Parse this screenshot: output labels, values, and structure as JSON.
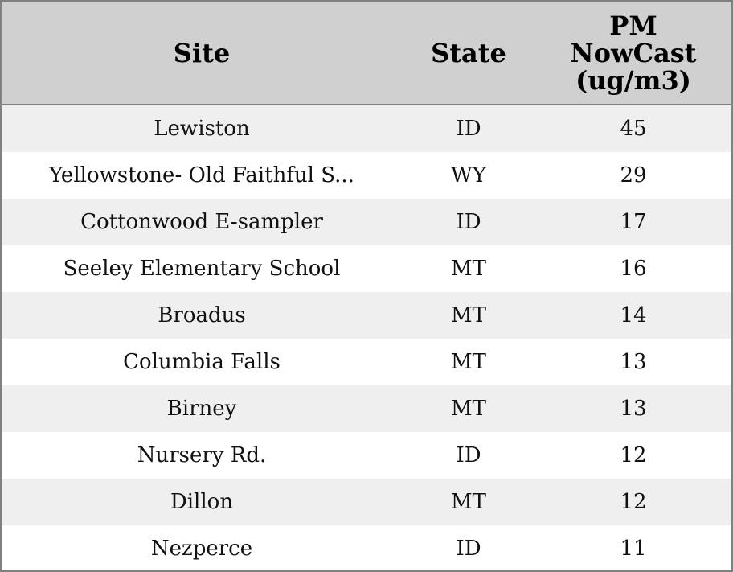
{
  "table": {
    "header": [
      "Site",
      "State",
      "PM NowCast (ug/m3)"
    ],
    "rows": [
      [
        "Lewiston",
        "ID",
        45
      ],
      [
        "Yellowstone- Old Faithful S...",
        "WY",
        29
      ],
      [
        "Cottonwood E-sampler",
        "ID",
        17
      ],
      [
        "Seeley Elementary School",
        "MT",
        16
      ],
      [
        "Broadus",
        "MT",
        14
      ],
      [
        "Columbia Falls",
        "MT",
        13
      ],
      [
        "Birney",
        "MT",
        13
      ],
      [
        "Nursery Rd.",
        "ID",
        12
      ],
      [
        "Dillon",
        "MT",
        12
      ],
      [
        "Nezperce",
        "ID",
        11
      ]
    ]
  }
}
